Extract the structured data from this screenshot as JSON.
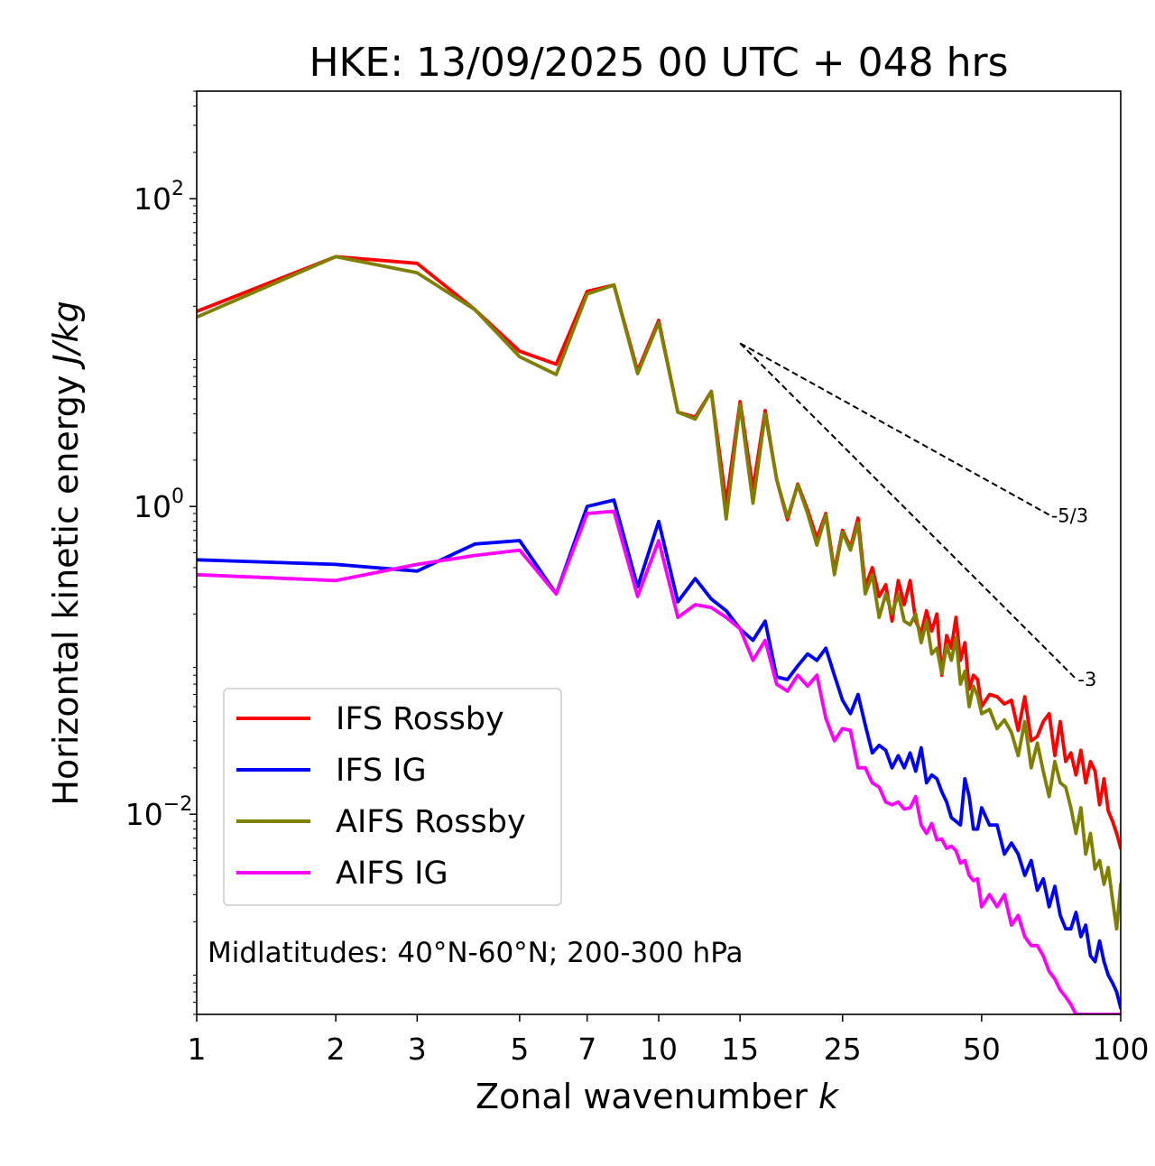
{
  "chart_data": {
    "type": "line",
    "title": "HKE: 13/09/2025 00 UTC + 048 hrs",
    "xlabel": "Zonal wavenumber ",
    "xlabel_italic": "k",
    "ylabel": "Horizontal kinetic energy ",
    "ylabel_italic": "J/kg",
    "xscale": "log",
    "yscale": "log",
    "xlim": [
      1,
      100
    ],
    "ylim": [
      0.0005,
      500
    ],
    "x_ticks": [
      1,
      2,
      3,
      5,
      7,
      10,
      15,
      25,
      50,
      100
    ],
    "x_tick_labels": [
      "1",
      "2",
      "3",
      "5",
      "7",
      "10",
      "15",
      "25",
      "50",
      "100"
    ],
    "y_ticks": [
      {
        "value": 100,
        "base": "10",
        "exp": "2"
      },
      {
        "value": 1,
        "base": "10",
        "exp": "0"
      },
      {
        "value": 0.01,
        "base": "10",
        "exp": "−2"
      }
    ],
    "legend_position": "lower-left",
    "annotation": "Midlatitudes: 40°N-60°N; 200-300 hPa",
    "reference_slopes": [
      {
        "label": "-5/3",
        "slope": -1.6667,
        "x0": 15,
        "y0": 11.5,
        "x1": 70
      },
      {
        "label": "-3",
        "slope": -3,
        "x0": 15,
        "y0": 11.5,
        "x1": 80
      }
    ],
    "series": [
      {
        "name": "IFS Rossby",
        "color": "#ff0000",
        "x": [
          1,
          2,
          3,
          4,
          5,
          6,
          7,
          8,
          9,
          10,
          11,
          12,
          13,
          14,
          15,
          16,
          17,
          18,
          19,
          20,
          21,
          22,
          23,
          24,
          25,
          26,
          27,
          28,
          29,
          30,
          31,
          32,
          33,
          34,
          35,
          36,
          37,
          38,
          39,
          40,
          41,
          42,
          43,
          44,
          45,
          46,
          47,
          48,
          49,
          50,
          52,
          54,
          56,
          58,
          60,
          62,
          64,
          66,
          68,
          70,
          72,
          74,
          76,
          78,
          80,
          82,
          84,
          86,
          88,
          90,
          92,
          94,
          96,
          98,
          100
        ],
        "values": [
          18.5,
          42,
          38,
          19,
          10.2,
          8.4,
          25,
          27.5,
          7.6,
          16.2,
          4.1,
          3.8,
          5.6,
          1.05,
          4.8,
          1.3,
          4.2,
          1.5,
          0.82,
          1.4,
          0.95,
          0.62,
          0.9,
          0.38,
          0.7,
          0.54,
          0.84,
          0.3,
          0.4,
          0.26,
          0.31,
          0.18,
          0.33,
          0.23,
          0.33,
          0.18,
          0.15,
          0.21,
          0.155,
          0.2,
          0.08,
          0.145,
          0.12,
          0.19,
          0.1,
          0.13,
          0.065,
          0.08,
          0.075,
          0.05,
          0.06,
          0.058,
          0.052,
          0.055,
          0.035,
          0.058,
          0.03,
          0.032,
          0.04,
          0.045,
          0.024,
          0.04,
          0.022,
          0.025,
          0.018,
          0.026,
          0.016,
          0.022,
          0.019,
          0.0115,
          0.017,
          0.0105,
          0.009,
          0.0075,
          0.006
        ]
      },
      {
        "name": "IFS IG",
        "color": "#0000ff",
        "x": [
          1,
          2,
          3,
          4,
          5,
          6,
          7,
          8,
          9,
          10,
          11,
          12,
          13,
          14,
          15,
          16,
          17,
          18,
          19,
          20,
          21,
          22,
          23,
          24,
          25,
          26,
          27,
          28,
          29,
          30,
          31,
          32,
          33,
          34,
          35,
          36,
          37,
          38,
          39,
          40,
          41,
          42,
          43,
          44,
          45,
          46,
          47,
          48,
          49,
          50,
          52,
          54,
          56,
          58,
          60,
          62,
          64,
          66,
          68,
          70,
          72,
          74,
          76,
          78,
          80,
          82,
          84,
          86,
          88,
          90,
          92,
          94,
          96,
          98,
          100
        ],
        "values": [
          0.45,
          0.42,
          0.38,
          0.57,
          0.6,
          0.27,
          1.0,
          1.1,
          0.3,
          0.8,
          0.24,
          0.34,
          0.25,
          0.21,
          0.16,
          0.135,
          0.18,
          0.078,
          0.075,
          0.092,
          0.11,
          0.1,
          0.12,
          0.08,
          0.055,
          0.045,
          0.06,
          0.038,
          0.025,
          0.028,
          0.026,
          0.02,
          0.024,
          0.02,
          0.025,
          0.019,
          0.027,
          0.016,
          0.018,
          0.017,
          0.014,
          0.012,
          0.0095,
          0.009,
          0.0085,
          0.017,
          0.013,
          0.008,
          0.008,
          0.011,
          0.0085,
          0.0085,
          0.0055,
          0.0065,
          0.0055,
          0.004,
          0.005,
          0.0032,
          0.0038,
          0.0025,
          0.0034,
          0.0022,
          0.0018,
          0.0018,
          0.0023,
          0.0016,
          0.0019,
          0.0012,
          0.0011,
          0.0015,
          0.0011,
          0.0009,
          0.0008,
          0.0007,
          0.00055
        ]
      },
      {
        "name": "AIFS Rossby",
        "color": "#808000",
        "x": [
          1,
          2,
          3,
          4,
          5,
          6,
          7,
          8,
          9,
          10,
          11,
          12,
          13,
          14,
          15,
          16,
          17,
          18,
          19,
          20,
          21,
          22,
          23,
          24,
          25,
          26,
          27,
          28,
          29,
          30,
          31,
          32,
          33,
          34,
          35,
          36,
          37,
          38,
          39,
          40,
          41,
          42,
          43,
          44,
          45,
          46,
          47,
          48,
          49,
          50,
          52,
          54,
          56,
          58,
          60,
          62,
          64,
          66,
          68,
          70,
          72,
          74,
          76,
          78,
          80,
          82,
          84,
          86,
          88,
          90,
          92,
          94,
          96,
          98,
          100
        ],
        "values": [
          17,
          42,
          33,
          19,
          9.4,
          7.2,
          24,
          27.5,
          7.3,
          15.7,
          4.1,
          3.7,
          5.6,
          0.83,
          4.6,
          1.05,
          4.0,
          1.5,
          0.85,
          1.38,
          0.9,
          0.56,
          0.88,
          0.36,
          0.68,
          0.52,
          0.78,
          0.27,
          0.36,
          0.19,
          0.27,
          0.2,
          0.27,
          0.18,
          0.17,
          0.2,
          0.13,
          0.18,
          0.11,
          0.12,
          0.082,
          0.125,
          0.1,
          0.14,
          0.07,
          0.085,
          0.05,
          0.068,
          0.059,
          0.045,
          0.048,
          0.036,
          0.041,
          0.034,
          0.024,
          0.04,
          0.02,
          0.029,
          0.019,
          0.013,
          0.022,
          0.016,
          0.015,
          0.011,
          0.0075,
          0.011,
          0.0055,
          0.0075,
          0.0044,
          0.005,
          0.0035,
          0.0045,
          0.0028,
          0.0018,
          0.0035
        ]
      },
      {
        "name": "AIFS IG",
        "color": "#ff00ff",
        "x": [
          1,
          2,
          3,
          4,
          5,
          6,
          7,
          8,
          9,
          10,
          11,
          12,
          13,
          14,
          15,
          16,
          17,
          18,
          19,
          20,
          21,
          22,
          23,
          24,
          25,
          26,
          27,
          28,
          29,
          30,
          31,
          32,
          33,
          34,
          35,
          36,
          37,
          38,
          39,
          40,
          41,
          42,
          43,
          44,
          45,
          46,
          47,
          48,
          49,
          50,
          52,
          54,
          56,
          58,
          60,
          62,
          64,
          66,
          68,
          70,
          72,
          74,
          76,
          78,
          80,
          82,
          84,
          86,
          88,
          90,
          92,
          94,
          96,
          98,
          100
        ],
        "values": [
          0.36,
          0.33,
          0.42,
          0.48,
          0.52,
          0.27,
          0.9,
          0.93,
          0.26,
          0.6,
          0.19,
          0.23,
          0.22,
          0.19,
          0.16,
          0.1,
          0.135,
          0.07,
          0.063,
          0.08,
          0.068,
          0.08,
          0.042,
          0.03,
          0.036,
          0.035,
          0.02,
          0.02,
          0.016,
          0.015,
          0.012,
          0.0115,
          0.012,
          0.0108,
          0.011,
          0.013,
          0.0085,
          0.0075,
          0.0087,
          0.0068,
          0.0069,
          0.006,
          0.0062,
          0.0058,
          0.0048,
          0.005,
          0.004,
          0.0037,
          0.0038,
          0.0025,
          0.003,
          0.0025,
          0.003,
          0.0019,
          0.0022,
          0.0016,
          0.0014,
          0.0014,
          0.0012,
          0.00095,
          0.00085,
          0.00072,
          0.00065,
          0.00058,
          0.0005,
          0.0005,
          0.0005,
          0.0005,
          0.0005,
          0.0005,
          0.0005,
          0.0005,
          0.0005,
          0.0005,
          0.0005
        ]
      }
    ]
  }
}
